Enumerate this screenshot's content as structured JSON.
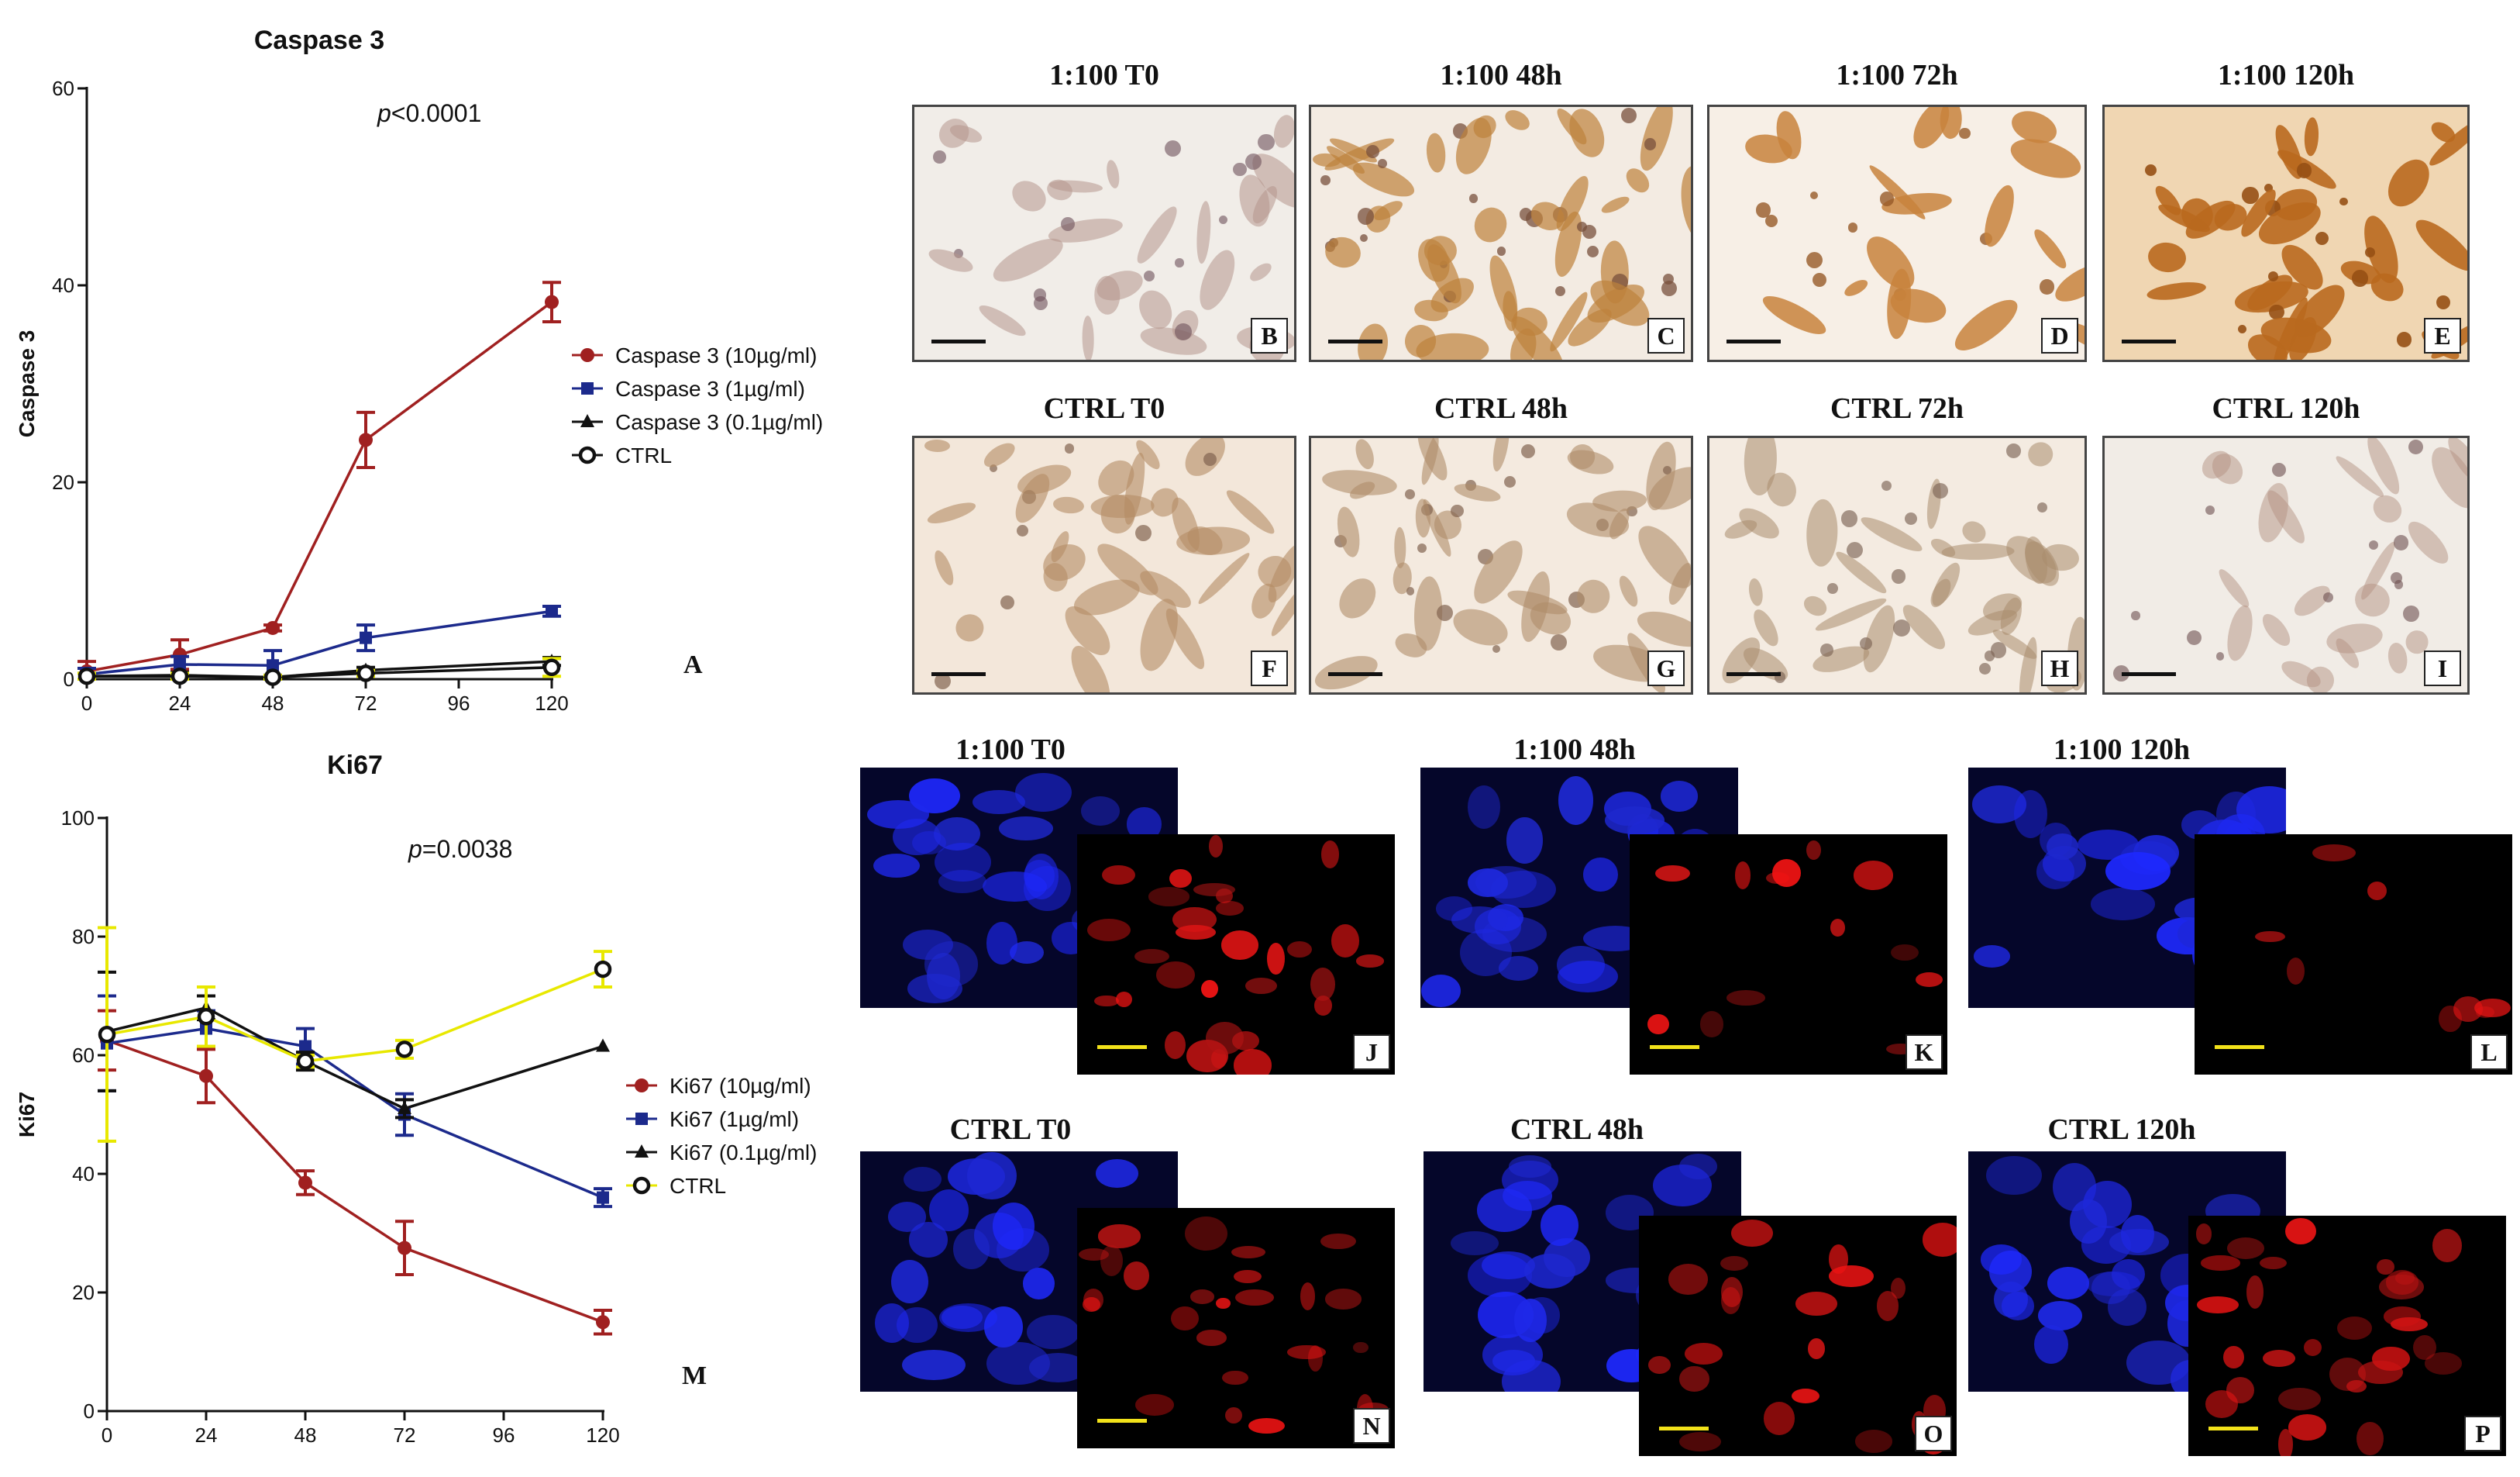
{
  "chart_data": [
    {
      "type": "line",
      "title": "Caspase 3",
      "ylabel": "Caspase 3",
      "xlabel": "",
      "annotation_prefix": "p",
      "annotation_rest": "<0.0001",
      "panel_letter": "A",
      "x": [
        0,
        24,
        48,
        72,
        96,
        120
      ],
      "xticks": [
        "0",
        "24",
        "48",
        "72",
        "96",
        "120"
      ],
      "ylim": [
        0,
        60
      ],
      "yticks": [
        "0",
        "20",
        "40",
        "60"
      ],
      "legend_position": "right",
      "series": [
        {
          "name": "Caspase 3 (10µg/ml)",
          "color": "#a02020",
          "marker": "circle",
          "x": [
            0,
            24,
            48,
            72,
            120
          ],
          "values": [
            0.8,
            2.5,
            5.2,
            24.3,
            38.3
          ],
          "err": [
            1.0,
            1.5,
            0.3,
            2.8,
            2.0
          ]
        },
        {
          "name": "Caspase 3 (1µg/ml)",
          "color": "#1c2a8c",
          "marker": "square",
          "x": [
            0,
            24,
            48,
            72,
            120
          ],
          "values": [
            0.5,
            1.5,
            1.4,
            4.2,
            6.9
          ],
          "err": [
            0.6,
            0.8,
            1.5,
            1.3,
            0.5
          ]
        },
        {
          "name": "Caspase 3 (0.1µg/ml)",
          "color": "#111111",
          "marker": "triangle",
          "x": [
            0,
            24,
            48,
            72,
            120
          ],
          "values": [
            0.3,
            0.4,
            0.2,
            0.9,
            1.8
          ],
          "err": [
            0.3,
            0.3,
            0.2,
            0.3,
            0.4
          ]
        },
        {
          "name": "CTRL",
          "color": "#111111",
          "marker": "open-circle",
          "errcolor": "#e8e800",
          "x": [
            0,
            24,
            48,
            72,
            120
          ],
          "values": [
            0.3,
            0.3,
            0.2,
            0.6,
            1.2
          ],
          "err": [
            0.3,
            0.3,
            0.2,
            0.3,
            0.9
          ]
        }
      ]
    },
    {
      "type": "line",
      "title": "Ki67",
      "ylabel": "Ki67",
      "xlabel": "",
      "annotation_prefix": "p",
      "annotation_rest": "=0.0038",
      "panel_letter": "M",
      "x": [
        0,
        24,
        48,
        72,
        96,
        120
      ],
      "xticks": [
        "0",
        "24",
        "48",
        "72",
        "96",
        "120"
      ],
      "ylim": [
        0,
        100
      ],
      "yticks": [
        "0",
        "20",
        "40",
        "60",
        "80",
        "100"
      ],
      "legend_position": "right",
      "series": [
        {
          "name": "Ki67 (10µg/ml)",
          "color": "#a02020",
          "marker": "circle",
          "x": [
            0,
            24,
            48,
            72,
            120
          ],
          "values": [
            62.5,
            56.5,
            38.5,
            27.5,
            15.0
          ],
          "err": [
            5,
            4.5,
            2,
            4.5,
            2
          ]
        },
        {
          "name": "Ki67 (1µg/ml)",
          "color": "#1c2a8c",
          "marker": "square",
          "x": [
            0,
            24,
            48,
            72,
            120
          ],
          "values": [
            62.0,
            64.5,
            61.5,
            50.0,
            36.0
          ],
          "err": [
            8,
            3,
            3,
            3.5,
            1.5
          ]
        },
        {
          "name": "Ki67 (0.1µg/ml)",
          "color": "#111111",
          "marker": "triangle",
          "x": [
            0,
            24,
            48,
            72,
            120
          ],
          "values": [
            64.0,
            68.0,
            59.0,
            51.0,
            61.5
          ],
          "err": [
            10,
            2,
            1.5,
            1.5,
            0
          ]
        },
        {
          "name": "CTRL",
          "color": "#e8e800",
          "marker": "open-circle",
          "edgecolor": "#111111",
          "x": [
            0,
            24,
            48,
            72,
            120
          ],
          "values": [
            63.5,
            66.5,
            59.0,
            61.0,
            74.5
          ],
          "err": [
            18,
            5,
            1,
            1.5,
            3
          ]
        }
      ]
    }
  ],
  "ihc_titles": [
    "1:100 T0",
    "1:100 48h",
    "1:100 72h",
    "1:100 120h",
    "CTRL T0",
    "CTRL 48h",
    "CTRL 72h",
    "CTRL 120h"
  ],
  "ihc_labels": [
    "B",
    "C",
    "D",
    "E",
    "F",
    "G",
    "H",
    "I"
  ],
  "if_titles": [
    "1:100 T0",
    "1:100 48h",
    "1:100 120h",
    "CTRL T0",
    "CTRL 48h",
    "CTRL 120h"
  ],
  "if_labels": [
    "J",
    "K",
    "L",
    "N",
    "O",
    "P"
  ]
}
